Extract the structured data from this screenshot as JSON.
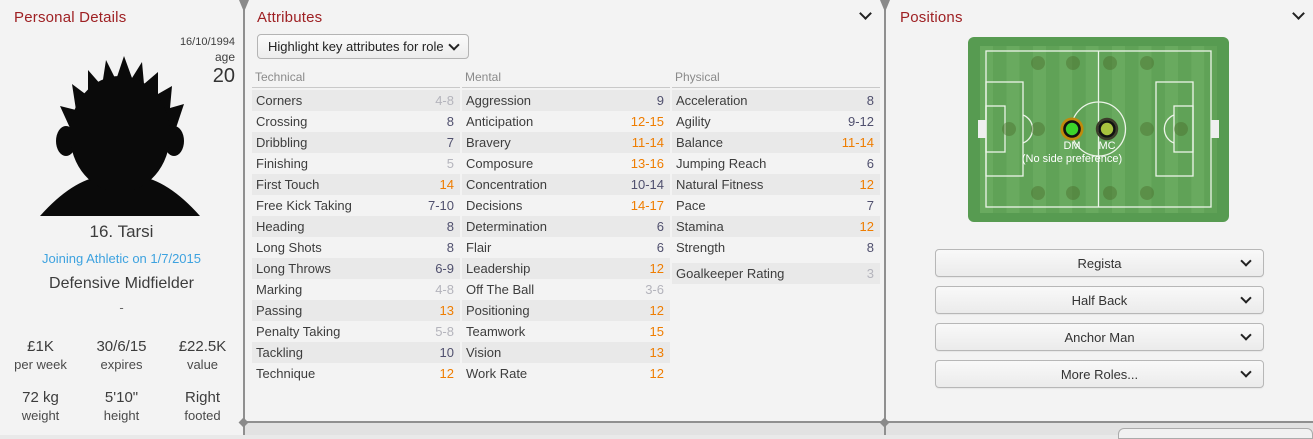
{
  "personal": {
    "title": "Personal Details",
    "birth_date": "16/10/1994",
    "age_label": "age",
    "age_value": "20",
    "name": "16. Tarsi",
    "transfer_note": "Joining Athletic on 1/7/2015",
    "position": "Defensive Midfielder",
    "secondary_position": "-",
    "facts": [
      {
        "value": "£1K",
        "label": "per week"
      },
      {
        "value": "30/6/15",
        "label": "expires"
      },
      {
        "value": "£22.5K",
        "label": "value"
      },
      {
        "value": "72 kg",
        "label": "weight"
      },
      {
        "value": "5'10\"",
        "label": "height"
      },
      {
        "value": "Right",
        "label": "footed"
      }
    ]
  },
  "attributes": {
    "title": "Attributes",
    "dropdown_label": "Highlight key attributes for role",
    "groups": [
      {
        "name": "Technical",
        "rows": [
          {
            "label": "Corners",
            "value": "4-8",
            "tone": "low"
          },
          {
            "label": "Crossing",
            "value": "8",
            "tone": "mid"
          },
          {
            "label": "Dribbling",
            "value": "7",
            "tone": "mid"
          },
          {
            "label": "Finishing",
            "value": "5",
            "tone": "low"
          },
          {
            "label": "First Touch",
            "value": "14",
            "tone": "high"
          },
          {
            "label": "Free Kick Taking",
            "value": "7-10",
            "tone": "mid"
          },
          {
            "label": "Heading",
            "value": "8",
            "tone": "mid"
          },
          {
            "label": "Long Shots",
            "value": "8",
            "tone": "mid"
          },
          {
            "label": "Long Throws",
            "value": "6-9",
            "tone": "mid"
          },
          {
            "label": "Marking",
            "value": "4-8",
            "tone": "low"
          },
          {
            "label": "Passing",
            "value": "13",
            "tone": "high"
          },
          {
            "label": "Penalty Taking",
            "value": "5-8",
            "tone": "low"
          },
          {
            "label": "Tackling",
            "value": "10",
            "tone": "mid"
          },
          {
            "label": "Technique",
            "value": "12",
            "tone": "high"
          }
        ]
      },
      {
        "name": "Mental",
        "rows": [
          {
            "label": "Aggression",
            "value": "9",
            "tone": "mid"
          },
          {
            "label": "Anticipation",
            "value": "12-15",
            "tone": "high"
          },
          {
            "label": "Bravery",
            "value": "11-14",
            "tone": "high"
          },
          {
            "label": "Composure",
            "value": "13-16",
            "tone": "high"
          },
          {
            "label": "Concentration",
            "value": "10-14",
            "tone": "mid"
          },
          {
            "label": "Decisions",
            "value": "14-17",
            "tone": "high"
          },
          {
            "label": "Determination",
            "value": "6",
            "tone": "mid"
          },
          {
            "label": "Flair",
            "value": "6",
            "tone": "mid"
          },
          {
            "label": "Leadership",
            "value": "12",
            "tone": "high"
          },
          {
            "label": "Off The Ball",
            "value": "3-6",
            "tone": "low"
          },
          {
            "label": "Positioning",
            "value": "12",
            "tone": "high"
          },
          {
            "label": "Teamwork",
            "value": "15",
            "tone": "high"
          },
          {
            "label": "Vision",
            "value": "13",
            "tone": "high"
          },
          {
            "label": "Work Rate",
            "value": "12",
            "tone": "high"
          }
        ]
      },
      {
        "name": "Physical",
        "rows": [
          {
            "label": "Acceleration",
            "value": "8",
            "tone": "mid"
          },
          {
            "label": "Agility",
            "value": "9-12",
            "tone": "mid"
          },
          {
            "label": "Balance",
            "value": "11-14",
            "tone": "high"
          },
          {
            "label": "Jumping Reach",
            "value": "6",
            "tone": "mid"
          },
          {
            "label": "Natural Fitness",
            "value": "12",
            "tone": "high"
          },
          {
            "label": "Pace",
            "value": "7",
            "tone": "mid"
          },
          {
            "label": "Stamina",
            "value": "12",
            "tone": "high"
          },
          {
            "label": "Strength",
            "value": "8",
            "tone": "mid"
          }
        ],
        "extra_rows": [
          {
            "label": "Goalkeeper Rating",
            "value": "3",
            "tone": "low"
          }
        ]
      }
    ]
  },
  "positions": {
    "title": "Positions",
    "pitch": {
      "primary_code": "DM",
      "secondary_code": "MC",
      "note": "(No side preference)"
    },
    "roles": [
      {
        "label": "Regista"
      },
      {
        "label": "Half Back"
      },
      {
        "label": "Anchor Man"
      },
      {
        "label": "More Roles..."
      }
    ]
  },
  "colors": {
    "accent_red": "#9e2023",
    "panel_bg": "#f3f3f3",
    "row_shade": "#e9e9e9",
    "value_mid": "#50506e",
    "value_high": "#ef7d00",
    "value_low": "#b4b4bc",
    "link_blue": "#3da2df",
    "pitch_green": "#579b51",
    "primary_dot": "#3bd42a",
    "primary_ring": "#c08a0c",
    "secondary_dot": "#a7c23e"
  }
}
